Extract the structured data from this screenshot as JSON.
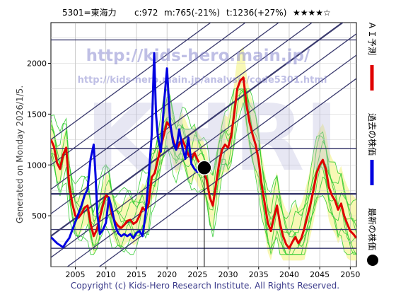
{
  "header": {
    "code": "5301=東海力",
    "current": "c:972",
    "mid": "m:765(-21%)",
    "target": "t:1236(+27%)",
    "rating": "★★★★☆"
  },
  "side_label": "Generated on Monday 2026/1/5.",
  "watermark": {
    "url": "http://kids-hero.main.jp/",
    "analysis_url": "http://kids-hero.main.jp/analysis/code5301.html",
    "logo": "KHRI"
  },
  "footer": "Copyright (c) Kids-Hero Research Institute. All Rights Reserved.",
  "legend": [
    {
      "label": "ＡＩ予測",
      "color": "#e00000"
    },
    {
      "label": "過去の株価",
      "color": "#0000e0"
    },
    {
      "label": "最新の株価",
      "color": "#000000"
    }
  ],
  "chart_data": {
    "type": "line",
    "xlim": [
      2001,
      2051
    ],
    "ylim": [
      0,
      2400
    ],
    "x_ticks": [
      2005,
      2010,
      2015,
      2020,
      2025,
      2030,
      2035,
      2040,
      2045,
      2050
    ],
    "y_ticks": [
      500,
      1000,
      1500,
      2000
    ],
    "latest_point": {
      "x": 2026.1,
      "y": 972
    },
    "horizontal_levels": [
      2230,
      1160,
      715,
      365,
      180
    ],
    "series": [
      {
        "name": "過去の株価",
        "color": "#0000e0",
        "points": [
          [
            2001,
            290
          ],
          [
            2001.5,
            260
          ],
          [
            2002,
            230
          ],
          [
            2002.5,
            210
          ],
          [
            2003,
            190
          ],
          [
            2003.5,
            240
          ],
          [
            2004,
            280
          ],
          [
            2004.5,
            360
          ],
          [
            2005,
            440
          ],
          [
            2005.5,
            520
          ],
          [
            2006,
            600
          ],
          [
            2006.5,
            700
          ],
          [
            2007,
            760
          ],
          [
            2007.5,
            1060
          ],
          [
            2008,
            1200
          ],
          [
            2008.3,
            900
          ],
          [
            2008.6,
            520
          ],
          [
            2009,
            320
          ],
          [
            2009.5,
            360
          ],
          [
            2010,
            430
          ],
          [
            2010.5,
            680
          ],
          [
            2011,
            560
          ],
          [
            2011.5,
            410
          ],
          [
            2012,
            330
          ],
          [
            2012.5,
            300
          ],
          [
            2013,
            320
          ],
          [
            2013.5,
            300
          ],
          [
            2014,
            320
          ],
          [
            2014.5,
            280
          ],
          [
            2015,
            330
          ],
          [
            2015.5,
            350
          ],
          [
            2016,
            300
          ],
          [
            2016.5,
            520
          ],
          [
            2017,
            880
          ],
          [
            2017.5,
            1300
          ],
          [
            2017.9,
            2100
          ],
          [
            2018.2,
            1500
          ],
          [
            2018.5,
            1280
          ],
          [
            2019,
            1130
          ],
          [
            2019.5,
            1600
          ],
          [
            2020,
            1950
          ],
          [
            2020.5,
            1420
          ],
          [
            2021,
            1220
          ],
          [
            2021.5,
            1150
          ],
          [
            2022,
            1350
          ],
          [
            2022.5,
            1180
          ],
          [
            2023,
            1060
          ],
          [
            2023.5,
            1270
          ],
          [
            2024,
            1010
          ],
          [
            2024.5,
            960
          ],
          [
            2025,
            930
          ],
          [
            2025.5,
            1000
          ]
        ]
      },
      {
        "name": "ＡＩ予測",
        "color": "#e00000",
        "points": [
          [
            2001,
            1250
          ],
          [
            2001.5,
            1180
          ],
          [
            2002,
            1020
          ],
          [
            2002.5,
            960
          ],
          [
            2003,
            1100
          ],
          [
            2003.5,
            1170
          ],
          [
            2004,
            800
          ],
          [
            2004.5,
            620
          ],
          [
            2005,
            500
          ],
          [
            2005.5,
            480
          ],
          [
            2006,
            520
          ],
          [
            2006.5,
            580
          ],
          [
            2007,
            600
          ],
          [
            2007.5,
            420
          ],
          [
            2008,
            300
          ],
          [
            2008.5,
            360
          ],
          [
            2009,
            480
          ],
          [
            2009.5,
            600
          ],
          [
            2010,
            700
          ],
          [
            2010.5,
            680
          ],
          [
            2011,
            510
          ],
          [
            2011.5,
            440
          ],
          [
            2012,
            400
          ],
          [
            2012.5,
            380
          ],
          [
            2013,
            410
          ],
          [
            2013.5,
            450
          ],
          [
            2014,
            460
          ],
          [
            2014.5,
            420
          ],
          [
            2015,
            440
          ],
          [
            2015.5,
            500
          ],
          [
            2016,
            580
          ],
          [
            2016.5,
            550
          ],
          [
            2017,
            620
          ],
          [
            2017.5,
            880
          ],
          [
            2018,
            920
          ],
          [
            2018.5,
            1050
          ],
          [
            2019,
            1180
          ],
          [
            2019.5,
            1300
          ],
          [
            2020,
            1420
          ],
          [
            2020.5,
            1380
          ],
          [
            2021,
            1250
          ],
          [
            2021.5,
            1150
          ],
          [
            2022,
            1200
          ],
          [
            2022.5,
            1250
          ],
          [
            2023,
            1180
          ],
          [
            2023.5,
            1100
          ],
          [
            2024,
            1060
          ],
          [
            2024.5,
            1120
          ],
          [
            2025,
            1050
          ],
          [
            2025.5,
            1000
          ],
          [
            2026,
            950
          ],
          [
            2026.5,
            850
          ],
          [
            2027,
            680
          ],
          [
            2027.5,
            600
          ],
          [
            2028,
            800
          ],
          [
            2028.5,
            1000
          ],
          [
            2029,
            1150
          ],
          [
            2029.5,
            1200
          ],
          [
            2030,
            1170
          ],
          [
            2030.5,
            1280
          ],
          [
            2031,
            1500
          ],
          [
            2031.5,
            1750
          ],
          [
            2032,
            1830
          ],
          [
            2032.5,
            1860
          ],
          [
            2033,
            1600
          ],
          [
            2033.5,
            1420
          ],
          [
            2034,
            1300
          ],
          [
            2034.5,
            1200
          ],
          [
            2035,
            1050
          ],
          [
            2035.5,
            800
          ],
          [
            2036,
            620
          ],
          [
            2036.5,
            430
          ],
          [
            2037,
            350
          ],
          [
            2037.5,
            480
          ],
          [
            2038,
            600
          ],
          [
            2038.5,
            420
          ],
          [
            2039,
            300
          ],
          [
            2039.5,
            220
          ],
          [
            2040,
            180
          ],
          [
            2040.5,
            240
          ],
          [
            2041,
            290
          ],
          [
            2041.5,
            230
          ],
          [
            2042,
            280
          ],
          [
            2042.5,
            380
          ],
          [
            2043,
            500
          ],
          [
            2043.5,
            620
          ],
          [
            2044,
            760
          ],
          [
            2044.5,
            920
          ],
          [
            2045,
            1000
          ],
          [
            2045.5,
            1050
          ],
          [
            2046,
            960
          ],
          [
            2046.5,
            780
          ],
          [
            2047,
            700
          ],
          [
            2047.5,
            650
          ],
          [
            2048,
            560
          ],
          [
            2048.5,
            620
          ],
          [
            2049,
            500
          ],
          [
            2049.5,
            420
          ],
          [
            2050,
            350
          ],
          [
            2050.5,
            320
          ],
          [
            2051,
            280
          ]
        ]
      }
    ]
  }
}
